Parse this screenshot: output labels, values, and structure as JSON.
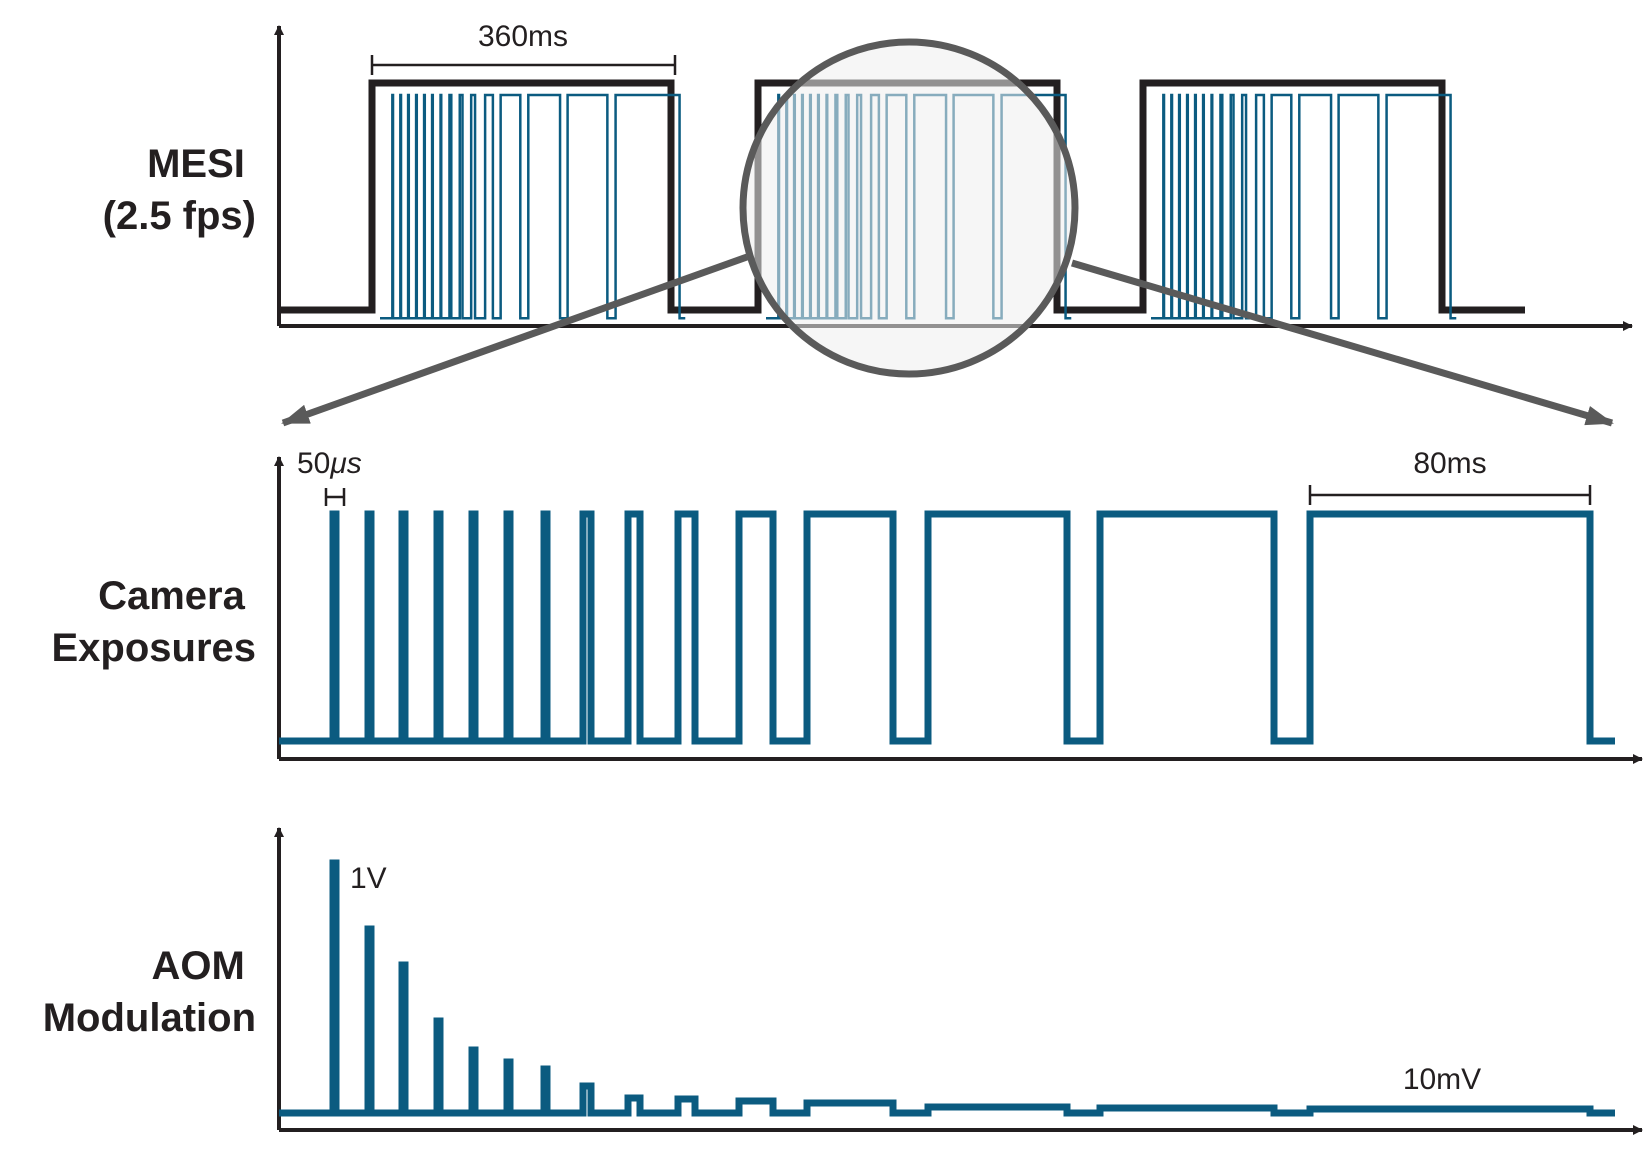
{
  "colors": {
    "axis": "#231f20",
    "signal": "#0b5b80",
    "magnifier": "#5a5a5a",
    "magnifier_fill": "#eeeeee"
  },
  "rows": {
    "mesi": {
      "label_line1": "MESI",
      "label_line2": "(2.5 fps)",
      "duration_annotation": "360ms"
    },
    "camera": {
      "label_line1": "Camera",
      "label_line2": "Exposures",
      "min_exposure_annotation": "50",
      "min_exposure_unit": "μs",
      "max_exposure_annotation": "80ms"
    },
    "aom": {
      "label_line1": "AOM",
      "label_line2": "Modulation",
      "max_level": "1V",
      "min_level": "10mV"
    }
  }
}
